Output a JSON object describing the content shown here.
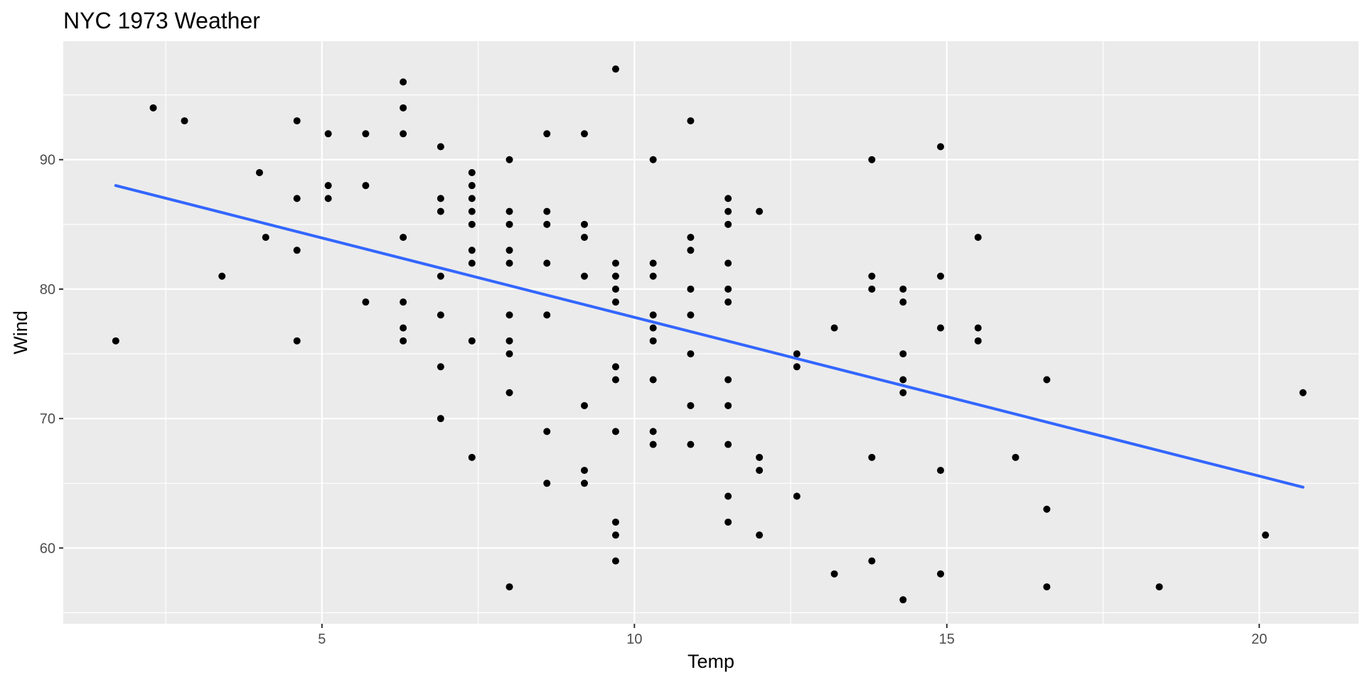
{
  "chart_data": {
    "type": "scatter",
    "title": "NYC 1973 Weather",
    "xlabel": "Temp",
    "ylabel": "Wind",
    "xlim": [
      0.86,
      21.59
    ],
    "ylim": [
      54.15,
      99.15
    ],
    "x_ticks": [
      5,
      10,
      15,
      20
    ],
    "x_tick_labels": [
      "5",
      "10",
      "15",
      "20"
    ],
    "y_ticks": [
      60,
      70,
      80,
      90
    ],
    "y_tick_labels": [
      "60",
      "70",
      "80",
      "90"
    ],
    "grid": true,
    "legend": "none",
    "colors": {
      "panel_background": "#ebebeb",
      "grid": "#ffffff",
      "points": "#000000",
      "trend_line": "#3366ff",
      "tick_label": "#4d4d4d"
    },
    "trend_line": {
      "x": [
        1.7,
        20.7
      ],
      "y": [
        88.0,
        64.7
      ]
    },
    "points": [
      [
        1.7,
        76
      ],
      [
        2.3,
        94
      ],
      [
        2.8,
        93
      ],
      [
        3.4,
        81
      ],
      [
        4.0,
        89
      ],
      [
        4.1,
        84
      ],
      [
        4.6,
        93
      ],
      [
        4.6,
        87
      ],
      [
        4.6,
        83
      ],
      [
        4.6,
        76
      ],
      [
        5.1,
        92
      ],
      [
        5.1,
        88
      ],
      [
        5.1,
        87
      ],
      [
        5.7,
        92
      ],
      [
        5.7,
        88
      ],
      [
        5.7,
        79
      ],
      [
        6.3,
        96
      ],
      [
        6.3,
        94
      ],
      [
        6.3,
        92
      ],
      [
        6.3,
        84
      ],
      [
        6.3,
        79
      ],
      [
        6.3,
        77
      ],
      [
        6.3,
        76
      ],
      [
        6.9,
        91
      ],
      [
        6.9,
        87
      ],
      [
        6.9,
        86
      ],
      [
        6.9,
        81
      ],
      [
        6.9,
        78
      ],
      [
        6.9,
        74
      ],
      [
        6.9,
        70
      ],
      [
        7.4,
        89
      ],
      [
        7.4,
        88
      ],
      [
        7.4,
        87
      ],
      [
        7.4,
        86
      ],
      [
        7.4,
        85
      ],
      [
        7.4,
        83
      ],
      [
        7.4,
        82
      ],
      [
        7.4,
        76
      ],
      [
        7.4,
        67
      ],
      [
        8.0,
        90
      ],
      [
        8.0,
        86
      ],
      [
        8.0,
        85
      ],
      [
        8.0,
        83
      ],
      [
        8.0,
        82
      ],
      [
        8.0,
        78
      ],
      [
        8.0,
        76
      ],
      [
        8.0,
        75
      ],
      [
        8.0,
        72
      ],
      [
        8.0,
        57
      ],
      [
        8.6,
        92
      ],
      [
        8.6,
        86
      ],
      [
        8.6,
        85
      ],
      [
        8.6,
        82
      ],
      [
        8.6,
        78
      ],
      [
        8.6,
        69
      ],
      [
        8.6,
        65
      ],
      [
        9.2,
        92
      ],
      [
        9.2,
        85
      ],
      [
        9.2,
        84
      ],
      [
        9.2,
        81
      ],
      [
        9.2,
        71
      ],
      [
        9.2,
        66
      ],
      [
        9.2,
        65
      ],
      [
        9.7,
        97
      ],
      [
        9.7,
        82
      ],
      [
        9.7,
        81
      ],
      [
        9.7,
        80
      ],
      [
        9.7,
        79
      ],
      [
        9.7,
        74
      ],
      [
        9.7,
        73
      ],
      [
        9.7,
        69
      ],
      [
        9.7,
        62
      ],
      [
        9.7,
        61
      ],
      [
        9.7,
        59
      ],
      [
        10.3,
        90
      ],
      [
        10.3,
        82
      ],
      [
        10.3,
        81
      ],
      [
        10.3,
        78
      ],
      [
        10.3,
        77
      ],
      [
        10.3,
        76
      ],
      [
        10.3,
        73
      ],
      [
        10.3,
        69
      ],
      [
        10.3,
        68
      ],
      [
        10.9,
        93
      ],
      [
        10.9,
        84
      ],
      [
        10.9,
        83
      ],
      [
        10.9,
        80
      ],
      [
        10.9,
        78
      ],
      [
        10.9,
        75
      ],
      [
        10.9,
        71
      ],
      [
        10.9,
        68
      ],
      [
        11.5,
        87
      ],
      [
        11.5,
        86
      ],
      [
        11.5,
        85
      ],
      [
        11.5,
        82
      ],
      [
        11.5,
        80
      ],
      [
        11.5,
        79
      ],
      [
        11.5,
        73
      ],
      [
        11.5,
        71
      ],
      [
        11.5,
        68
      ],
      [
        11.5,
        64
      ],
      [
        11.5,
        62
      ],
      [
        12.0,
        86
      ],
      [
        12.0,
        67
      ],
      [
        12.0,
        66
      ],
      [
        12.0,
        61
      ],
      [
        12.6,
        75
      ],
      [
        12.6,
        74
      ],
      [
        12.6,
        64
      ],
      [
        13.2,
        77
      ],
      [
        13.2,
        58
      ],
      [
        13.8,
        90
      ],
      [
        13.8,
        81
      ],
      [
        13.8,
        80
      ],
      [
        13.8,
        67
      ],
      [
        13.8,
        59
      ],
      [
        14.3,
        80
      ],
      [
        14.3,
        79
      ],
      [
        14.3,
        75
      ],
      [
        14.3,
        73
      ],
      [
        14.3,
        72
      ],
      [
        14.3,
        56
      ],
      [
        14.9,
        91
      ],
      [
        14.9,
        81
      ],
      [
        14.9,
        77
      ],
      [
        14.9,
        66
      ],
      [
        14.9,
        58
      ],
      [
        15.5,
        84
      ],
      [
        15.5,
        77
      ],
      [
        15.5,
        76
      ],
      [
        16.1,
        67
      ],
      [
        16.6,
        73
      ],
      [
        16.6,
        63
      ],
      [
        16.6,
        57
      ],
      [
        18.4,
        57
      ],
      [
        20.1,
        61
      ],
      [
        20.7,
        72
      ]
    ]
  }
}
